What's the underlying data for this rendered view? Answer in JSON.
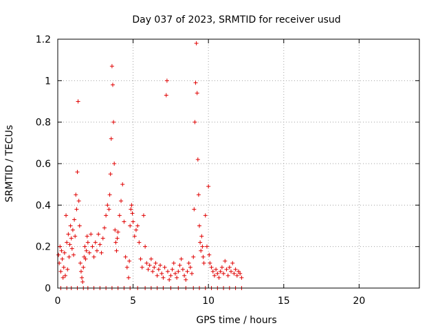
{
  "chart_data": {
    "type": "scatter",
    "title": "Day 037 of 2023, SRMTID for receiver usud",
    "xlabel": "GPS time / hours",
    "ylabel": "SRMTID / TECUs",
    "xlim": [
      0,
      24
    ],
    "ylim": [
      0,
      1.2
    ],
    "xticks": [
      0,
      5,
      10,
      15,
      20
    ],
    "xtick_labels": [
      "0",
      "5",
      "10",
      "15",
      "20"
    ],
    "yticks": [
      0,
      0.2,
      0.4,
      0.6,
      0.8,
      1,
      1.2
    ],
    "ytick_labels": [
      "0",
      "0.2",
      "0.4",
      "0.6",
      "0.8",
      "1",
      "1.2"
    ],
    "grid": true,
    "marker": "+",
    "series_color": "#e00000",
    "series": [
      {
        "name": "SRMTID",
        "points": [
          [
            0.05,
            0.16
          ],
          [
            0.1,
            0.12
          ],
          [
            0.15,
            0.2
          ],
          [
            0.2,
            0.08
          ],
          [
            0.25,
            0.18
          ],
          [
            0.3,
            0.14
          ],
          [
            0.35,
            0.05
          ],
          [
            0.4,
            0.1
          ],
          [
            0.45,
            0.17
          ],
          [
            0.5,
            0.06
          ],
          [
            0.55,
            0.35
          ],
          [
            0.6,
            0.22
          ],
          [
            0.65,
            0.09
          ],
          [
            0.7,
            0.26
          ],
          [
            0.75,
            0.15
          ],
          [
            0.8,
            0.21
          ],
          [
            0.85,
            0.3
          ],
          [
            0.9,
            0.24
          ],
          [
            0.95,
            0.19
          ],
          [
            1.0,
            0.28
          ],
          [
            1.05,
            0.16
          ],
          [
            1.1,
            0.33
          ],
          [
            1.15,
            0.25
          ],
          [
            1.2,
            0.45
          ],
          [
            1.25,
            0.38
          ],
          [
            1.3,
            0.56
          ],
          [
            1.35,
            0.9
          ],
          [
            1.4,
            0.42
          ],
          [
            1.45,
            0.3
          ],
          [
            1.5,
            0.12
          ],
          [
            1.55,
            0.08
          ],
          [
            1.6,
            0.05
          ],
          [
            1.65,
            0.03
          ],
          [
            1.7,
            0.1
          ],
          [
            1.75,
            0.15
          ],
          [
            1.8,
            0.2
          ],
          [
            1.85,
            0.14
          ],
          [
            1.9,
            0.18
          ],
          [
            1.95,
            0.25
          ],
          [
            2.0,
            0.22
          ],
          [
            2.1,
            0.17
          ],
          [
            2.2,
            0.26
          ],
          [
            2.3,
            0.2
          ],
          [
            2.4,
            0.15
          ],
          [
            2.5,
            0.22
          ],
          [
            2.6,
            0.18
          ],
          [
            2.7,
            0.26
          ],
          [
            2.8,
            0.21
          ],
          [
            2.9,
            0.17
          ],
          [
            3.0,
            0.24
          ],
          [
            3.1,
            0.29
          ],
          [
            3.2,
            0.35
          ],
          [
            3.3,
            0.4
          ],
          [
            3.4,
            0.38
          ],
          [
            3.45,
            0.45
          ],
          [
            3.5,
            0.55
          ],
          [
            3.55,
            0.72
          ],
          [
            3.6,
            1.07
          ],
          [
            3.65,
            0.98
          ],
          [
            3.7,
            0.8
          ],
          [
            3.75,
            0.6
          ],
          [
            3.8,
            0.28
          ],
          [
            3.85,
            0.22
          ],
          [
            3.9,
            0.18
          ],
          [
            3.95,
            0.24
          ],
          [
            4.0,
            0.27
          ],
          [
            4.1,
            0.35
          ],
          [
            4.2,
            0.42
          ],
          [
            4.3,
            0.5
          ],
          [
            4.4,
            0.32
          ],
          [
            4.5,
            0.15
          ],
          [
            4.6,
            0.1
          ],
          [
            4.7,
            0.05
          ],
          [
            4.75,
            0.13
          ],
          [
            4.8,
            0.3
          ],
          [
            4.85,
            0.38
          ],
          [
            4.9,
            0.4
          ],
          [
            4.95,
            0.36
          ],
          [
            5.0,
            0.32
          ],
          [
            5.1,
            0.25
          ],
          [
            5.2,
            0.28
          ],
          [
            5.3,
            0.3
          ],
          [
            5.4,
            0.22
          ],
          [
            5.5,
            0.14
          ],
          [
            5.6,
            0.1
          ],
          [
            5.7,
            0.35
          ],
          [
            5.8,
            0.2
          ],
          [
            5.9,
            0.12
          ],
          [
            6.0,
            0.09
          ],
          [
            6.1,
            0.11
          ],
          [
            6.2,
            0.14
          ],
          [
            6.3,
            0.08
          ],
          [
            6.4,
            0.1
          ],
          [
            6.5,
            0.12
          ],
          [
            6.6,
            0.06
          ],
          [
            6.7,
            0.09
          ],
          [
            6.8,
            0.11
          ],
          [
            6.9,
            0.07
          ],
          [
            7.0,
            0.05
          ],
          [
            7.1,
            0.1
          ],
          [
            7.2,
            0.93
          ],
          [
            7.25,
            1.0
          ],
          [
            7.3,
            0.08
          ],
          [
            7.4,
            0.04
          ],
          [
            7.5,
            0.06
          ],
          [
            7.6,
            0.09
          ],
          [
            7.7,
            0.12
          ],
          [
            7.8,
            0.07
          ],
          [
            7.9,
            0.05
          ],
          [
            8.0,
            0.08
          ],
          [
            8.1,
            0.11
          ],
          [
            8.2,
            0.14
          ],
          [
            8.3,
            0.09
          ],
          [
            8.4,
            0.06
          ],
          [
            8.5,
            0.04
          ],
          [
            8.6,
            0.08
          ],
          [
            8.7,
            0.12
          ],
          [
            8.8,
            0.1
          ],
          [
            8.9,
            0.07
          ],
          [
            9.0,
            0.15
          ],
          [
            9.05,
            0.38
          ],
          [
            9.1,
            0.8
          ],
          [
            9.15,
            0.99
          ],
          [
            9.2,
            1.18
          ],
          [
            9.25,
            0.94
          ],
          [
            9.3,
            0.62
          ],
          [
            9.35,
            0.45
          ],
          [
            9.4,
            0.3
          ],
          [
            9.45,
            0.22
          ],
          [
            9.5,
            0.18
          ],
          [
            9.55,
            0.25
          ],
          [
            9.6,
            0.2
          ],
          [
            9.65,
            0.15
          ],
          [
            9.7,
            0.12
          ],
          [
            9.8,
            0.35
          ],
          [
            9.9,
            0.2
          ],
          [
            10.0,
            0.49
          ],
          [
            10.05,
            0.16
          ],
          [
            10.1,
            0.12
          ],
          [
            10.2,
            0.1
          ],
          [
            10.3,
            0.08
          ],
          [
            10.4,
            0.06
          ],
          [
            10.5,
            0.09
          ],
          [
            10.6,
            0.07
          ],
          [
            10.7,
            0.05
          ],
          [
            10.8,
            0.08
          ],
          [
            10.9,
            0.1
          ],
          [
            11.0,
            0.07
          ],
          [
            11.1,
            0.13
          ],
          [
            11.2,
            0.09
          ],
          [
            11.3,
            0.06
          ],
          [
            11.4,
            0.1
          ],
          [
            11.5,
            0.08
          ],
          [
            11.6,
            0.12
          ],
          [
            11.7,
            0.07
          ],
          [
            11.8,
            0.09
          ],
          [
            11.9,
            0.06
          ],
          [
            12.0,
            0.08
          ],
          [
            12.1,
            0.07
          ],
          [
            12.2,
            0.05
          ],
          [
            0.2,
            0.0
          ],
          [
            0.6,
            0.0
          ],
          [
            0.9,
            0.0
          ],
          [
            1.3,
            0.0
          ],
          [
            1.7,
            0.0
          ],
          [
            2.0,
            0.0
          ],
          [
            2.4,
            0.0
          ],
          [
            2.8,
            0.0
          ],
          [
            3.2,
            0.0
          ],
          [
            3.6,
            0.0
          ],
          [
            4.0,
            0.0
          ],
          [
            4.4,
            0.0
          ],
          [
            4.8,
            0.0
          ],
          [
            5.3,
            0.0
          ],
          [
            5.8,
            0.0
          ],
          [
            6.2,
            0.0
          ],
          [
            6.6,
            0.0
          ],
          [
            7.0,
            0.0
          ],
          [
            7.5,
            0.0
          ],
          [
            8.0,
            0.0
          ],
          [
            8.5,
            0.0
          ],
          [
            9.0,
            0.0
          ],
          [
            9.4,
            0.0
          ],
          [
            9.8,
            0.0
          ],
          [
            10.2,
            0.0
          ],
          [
            10.6,
            0.0
          ],
          [
            11.0,
            0.0
          ],
          [
            11.4,
            0.0
          ],
          [
            11.8,
            0.0
          ],
          [
            12.2,
            0.0
          ]
        ]
      }
    ]
  }
}
